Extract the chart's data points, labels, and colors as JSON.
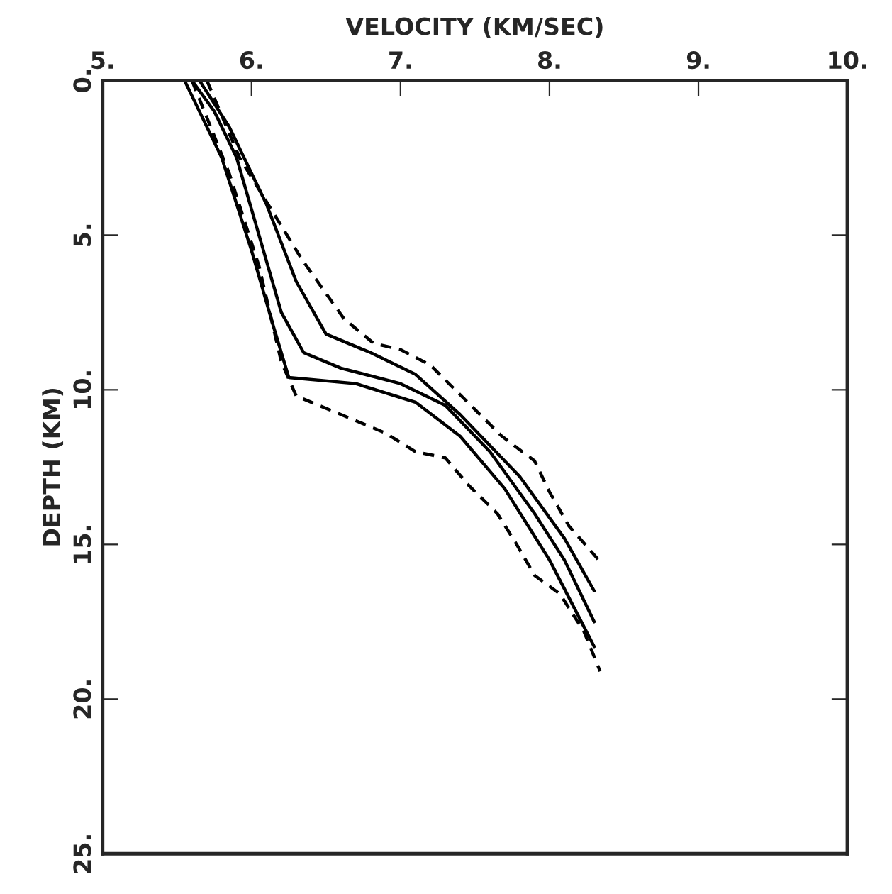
{
  "chart_data": {
    "type": "line",
    "xlabel": "VELOCITY (KM/SEC)",
    "ylabel": "DEPTH (KM)",
    "xlim": [
      5,
      10
    ],
    "xticks": [
      {
        "value": 5,
        "label": "5."
      },
      {
        "value": 6,
        "label": "6."
      },
      {
        "value": 7,
        "label": "7."
      },
      {
        "value": 8,
        "label": "8."
      },
      {
        "value": 9,
        "label": "9."
      },
      {
        "value": 10,
        "label": "10."
      }
    ],
    "ylim": [
      25,
      0
    ],
    "yticks": [
      {
        "value": 0,
        "label": "0."
      },
      {
        "value": 5,
        "label": "5."
      },
      {
        "value": 10,
        "label": "10."
      },
      {
        "value": 15,
        "label": "15."
      },
      {
        "value": 20,
        "label": "20."
      },
      {
        "value": 25,
        "label": "25."
      }
    ],
    "grid": false,
    "legend": false,
    "marker": "none",
    "series": [
      {
        "color": "#000000",
        "line_style": "solid",
        "x": [
          5.6,
          5.75,
          5.9,
          6.05,
          6.2,
          6.35,
          6.6,
          7.0,
          7.3,
          7.6,
          7.9,
          8.1,
          8.3
        ],
        "values": [
          0,
          1,
          2.5,
          5,
          7.5,
          8.8,
          9.3,
          9.8,
          10.5,
          12,
          14,
          15.5,
          17.5
        ]
      },
      {
        "color": "#000000",
        "line_style": "solid",
        "x": [
          5.65,
          5.85,
          6.1,
          6.3,
          6.5,
          6.8,
          7.1,
          7.4,
          7.8,
          8.1,
          8.3
        ],
        "values": [
          0,
          1.5,
          4,
          6.5,
          8.2,
          8.8,
          9.5,
          10.8,
          12.8,
          14.8,
          16.5
        ]
      },
      {
        "color": "#000000",
        "line_style": "solid",
        "x": [
          5.55,
          5.8,
          6.0,
          6.15,
          6.25,
          6.7,
          7.1,
          7.4,
          7.7,
          8.0,
          8.3
        ],
        "values": [
          0,
          2.5,
          5.5,
          8,
          9.6,
          9.8,
          10.4,
          11.5,
          13.2,
          15.5,
          18.3
        ]
      },
      {
        "color": "#000000",
        "line_style": "dashed",
        "x": [
          5.7,
          5.92,
          6.34,
          6.62,
          6.82,
          7.0,
          7.2,
          7.68,
          7.9,
          8.0,
          8.13,
          8.33
        ],
        "values": [
          0,
          2.5,
          5.8,
          7.7,
          8.5,
          8.7,
          9.2,
          11.5,
          12.3,
          13.3,
          14.4,
          15.5
        ]
      },
      {
        "color": "#000000",
        "line_style": "dashed",
        "x": [
          5.6,
          5.85,
          6.05,
          6.2,
          6.3,
          6.9,
          7.1,
          7.3,
          7.46,
          7.65,
          7.78,
          7.9,
          8.07,
          8.23,
          8.34
        ],
        "values": [
          0,
          3,
          6,
          9.1,
          10.2,
          11.4,
          12.0,
          12.2,
          13.1,
          14.0,
          15.0,
          16.0,
          16.6,
          17.8,
          19.1
        ]
      }
    ]
  }
}
